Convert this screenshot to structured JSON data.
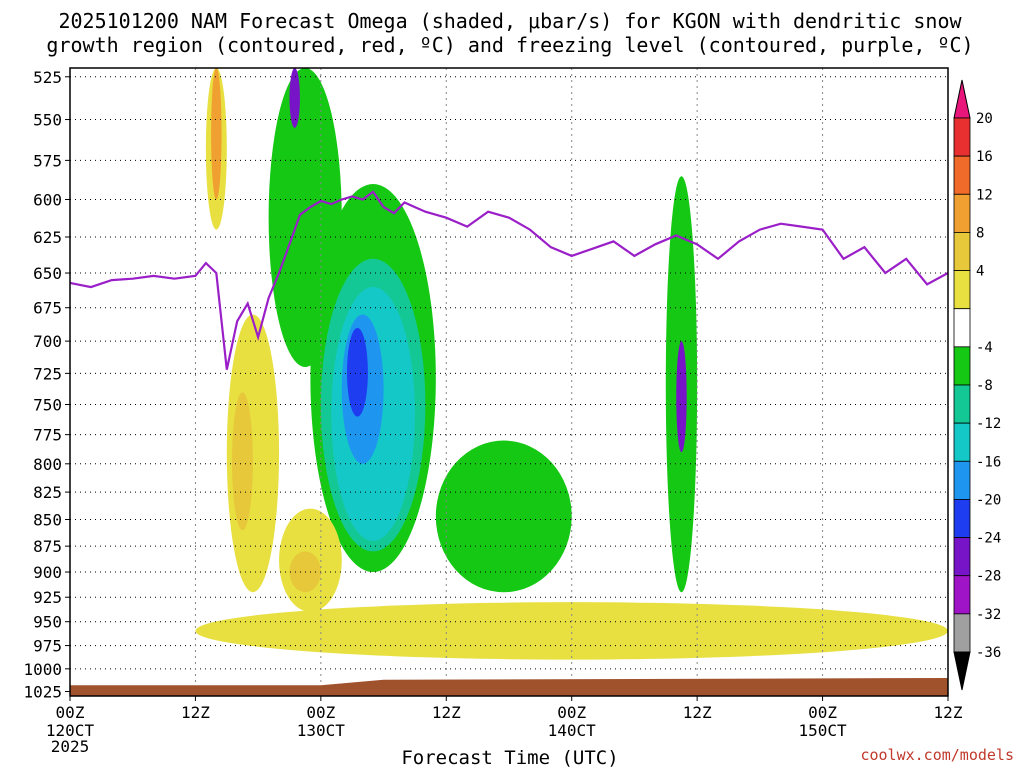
{
  "chart_data": {
    "type": "heatmap",
    "title_line1": "2025101200 NAM Forecast Omega (shaded, μbar/s) for KGON with dendritic snow",
    "title_line2": "growth region (contoured, red, ºC) and freezing level (contoured, purple, ºC)",
    "xlabel": "Forecast Time (UTC)",
    "credit": "coolwx.com/models",
    "x_hours_range": [
      0,
      84
    ],
    "y_pressure_range": [
      1030,
      520
    ],
    "y_ticks": [
      "525",
      "550",
      "575",
      "600",
      "625",
      "650",
      "675",
      "700",
      "725",
      "750",
      "775",
      "800",
      "825",
      "850",
      "875",
      "900",
      "925",
      "950",
      "975",
      "1000",
      "1025"
    ],
    "x_ticks": [
      {
        "hour": 0,
        "label1": "00Z",
        "label2": "120CT",
        "label3": "2025"
      },
      {
        "hour": 12,
        "label1": "12Z",
        "label2": "",
        "label3": ""
      },
      {
        "hour": 24,
        "label1": "00Z",
        "label2": "130CT",
        "label3": ""
      },
      {
        "hour": 36,
        "label1": "12Z",
        "label2": "",
        "label3": ""
      },
      {
        "hour": 48,
        "label1": "00Z",
        "label2": "140CT",
        "label3": ""
      },
      {
        "hour": 60,
        "label1": "12Z",
        "label2": "",
        "label3": ""
      },
      {
        "hour": 72,
        "label1": "00Z",
        "label2": "150CT",
        "label3": ""
      },
      {
        "hour": 84,
        "label1": "12Z",
        "label2": "",
        "label3": ""
      }
    ],
    "colorbar": {
      "labels": [
        "20",
        "16",
        "12",
        "8",
        "4",
        "-4",
        "-8",
        "-12",
        "-16",
        "-20",
        "-24",
        "-28",
        "-32",
        "-36"
      ],
      "colors": [
        "#e8157a",
        "#e83030",
        "#f06a2a",
        "#f0a030",
        "#e6c83a",
        "#e8e040",
        "#ffffff",
        "#14c814",
        "#14c896",
        "#14c8c8",
        "#1e96f0",
        "#1e3cf0",
        "#7814c8",
        "#a014c8",
        "#a0a0a0",
        "#000000"
      ]
    },
    "freezing_level": {
      "hours": [
        0,
        2,
        4,
        6,
        8,
        10,
        12,
        13,
        14,
        15,
        16,
        17,
        18,
        19,
        20,
        21,
        22,
        23,
        24,
        25,
        26,
        27,
        28,
        29,
        30,
        31,
        32,
        33,
        34,
        35,
        36,
        38,
        40,
        42,
        44,
        46,
        48,
        50,
        52,
        54,
        56,
        58,
        60,
        62,
        64,
        66,
        68,
        70,
        72,
        74,
        76,
        78,
        80,
        82,
        84
      ],
      "pressure": [
        657,
        660,
        655,
        654,
        652,
        654,
        652,
        643,
        650,
        722,
        685,
        672,
        697,
        668,
        650,
        630,
        610,
        605,
        601,
        603,
        600,
        598,
        600,
        595,
        605,
        609,
        602,
        605,
        608,
        610,
        612,
        618,
        608,
        612,
        620,
        632,
        638,
        633,
        628,
        638,
        630,
        624,
        630,
        640,
        628,
        620,
        616,
        618,
        620,
        640,
        632,
        650,
        640,
        658,
        650
      ]
    },
    "omega_blobs": [
      {
        "level": "neg4",
        "hour_start": 19,
        "hour_end": 26,
        "p_top": 520,
        "p_bot": 720
      },
      {
        "level": "neg4",
        "hour_start": 23,
        "hour_end": 35,
        "p_top": 590,
        "p_bot": 900
      },
      {
        "level": "neg4",
        "hour_start": 35,
        "hour_end": 48,
        "p_top": 780,
        "p_bot": 920
      },
      {
        "level": "neg4",
        "hour_start": 57,
        "hour_end": 60,
        "p_top": 585,
        "p_bot": 920
      },
      {
        "level": "neg8",
        "hour_start": 24,
        "hour_end": 34,
        "p_top": 640,
        "p_bot": 880
      },
      {
        "level": "neg12",
        "hour_start": 25,
        "hour_end": 33,
        "p_top": 660,
        "p_bot": 870
      },
      {
        "level": "neg16",
        "hour_start": 26,
        "hour_end": 30,
        "p_top": 680,
        "p_bot": 800
      },
      {
        "level": "neg20",
        "hour_start": 26.5,
        "hour_end": 28.5,
        "p_top": 690,
        "p_bot": 760
      },
      {
        "level": "neg24",
        "hour_start": 21,
        "hour_end": 22,
        "p_top": 520,
        "p_bot": 555
      },
      {
        "level": "neg24",
        "hour_start": 58,
        "hour_end": 59,
        "p_top": 700,
        "p_bot": 790
      },
      {
        "level": "pos4",
        "hour_start": 13,
        "hour_end": 15,
        "p_top": 520,
        "p_bot": 620
      },
      {
        "level": "pos4",
        "hour_start": 15,
        "hour_end": 20,
        "p_top": 680,
        "p_bot": 920
      },
      {
        "level": "pos4",
        "hour_start": 20,
        "hour_end": 26,
        "p_top": 840,
        "p_bot": 940
      },
      {
        "level": "pos4",
        "hour_start": 12,
        "hour_end": 84,
        "p_top": 930,
        "p_bot": 990
      },
      {
        "level": "pos8",
        "hour_start": 15.5,
        "hour_end": 17.5,
        "p_top": 740,
        "p_bot": 860
      },
      {
        "level": "pos8",
        "hour_start": 21,
        "hour_end": 24,
        "p_top": 880,
        "p_bot": 920
      },
      {
        "level": "pos12",
        "hour_start": 13.5,
        "hour_end": 14.5,
        "p_top": 520,
        "p_bot": 600
      }
    ],
    "terrain_color": "#a0522d"
  }
}
